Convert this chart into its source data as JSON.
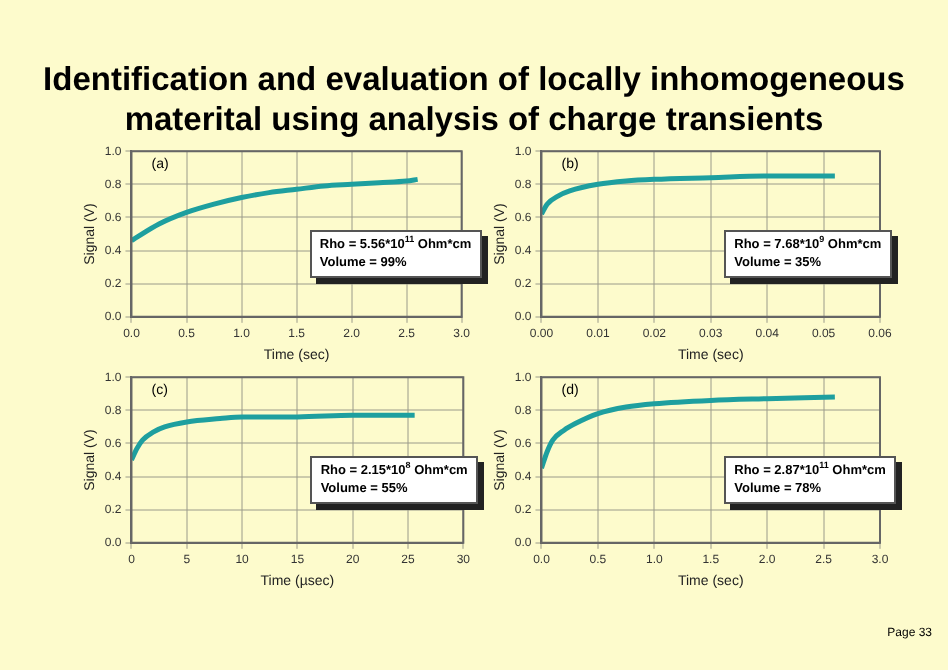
{
  "chart_data": [
    {
      "type": "line",
      "title": "Identification and evaluation of locally inhomogeneous materital using analysis of charge transients",
      "xlabel": "Time (sec)",
      "ylabel": "Signal (V)",
      "annotations": [
        "(a)",
        "Rho = 5.56*10$^{11}$ Ohm*cm",
        "Volume = 99%"
      ],
      "xlim": [
        0,
        3
      ],
      "xticks": [
        {
          "value": 0,
          "label": "0.0"
        },
        {
          "value": 0.5,
          "label": "0.5"
        },
        {
          "value": 1,
          "label": "1.0"
        },
        {
          "value": 1.5,
          "label": "1.5"
        },
        {
          "value": 2,
          "label": "2.0"
        },
        {
          "value": 2.5,
          "label": "2.5"
        },
        {
          "value": 3,
          "label": "3.0"
        }
      ],
      "ylim": [
        0,
        1
      ],
      "yticks": [
        {
          "value": 0,
          "label": "0.0"
        },
        {
          "value": 0.2,
          "label": "0.2"
        },
        {
          "value": 0.4,
          "label": "0.4"
        },
        {
          "value": 0.6,
          "label": "0.6"
        },
        {
          "value": 0.8,
          "label": "0.8"
        },
        {
          "value": 1,
          "label": "1.0"
        }
      ],
      "grid": true,
      "marker": "none",
      "series": [
        {
          "color": "#1e9f9f",
          "x": [
            0,
            0.25,
            0.5,
            0.75,
            1.0,
            1.25,
            1.5,
            1.75,
            2.0,
            2.25,
            2.5,
            2.6
          ],
          "values": [
            0.46,
            0.56,
            0.63,
            0.68,
            0.72,
            0.75,
            0.77,
            0.79,
            0.8,
            0.81,
            0.82,
            0.83
          ]
        }
      ]
    },
    {
      "type": "line",
      "xlabel": "Time (sec)",
      "ylabel": "Signal (V)",
      "annotations": [
        "(b)",
        "Rho = 7.68*10$^{9}$ Ohm*cm",
        "Volume = 35%"
      ],
      "xlim": [
        0,
        0.06
      ],
      "xticks": [
        {
          "value": 0,
          "label": "0.00"
        },
        {
          "value": 0.01,
          "label": "0.01"
        },
        {
          "value": 0.02,
          "label": "0.02"
        },
        {
          "value": 0.03,
          "label": "0.03"
        },
        {
          "value": 0.04,
          "label": "0.04"
        },
        {
          "value": 0.05,
          "label": "0.05"
        },
        {
          "value": 0.06,
          "label": "0.06"
        }
      ],
      "ylim": [
        0,
        1
      ],
      "yticks": [
        {
          "value": 0,
          "label": "0.0"
        },
        {
          "value": 0.2,
          "label": "0.2"
        },
        {
          "value": 0.4,
          "label": "0.4"
        },
        {
          "value": 0.6,
          "label": "0.6"
        },
        {
          "value": 0.8,
          "label": "0.8"
        },
        {
          "value": 1,
          "label": "1.0"
        }
      ],
      "grid": true,
      "marker": "none",
      "series": [
        {
          "color": "#1e9f9f",
          "x": [
            0,
            0.001,
            0.003,
            0.005,
            0.01,
            0.015,
            0.02,
            0.03,
            0.04,
            0.052
          ],
          "values": [
            0.62,
            0.68,
            0.73,
            0.76,
            0.8,
            0.82,
            0.83,
            0.84,
            0.85,
            0.85
          ]
        }
      ]
    },
    {
      "type": "line",
      "xlabel": "Time (µsec)",
      "ylabel": "Signal (V)",
      "annotations": [
        "(c)",
        "Rho = 2.15*10$^{8}$ Ohm*cm",
        "Volume = 55%"
      ],
      "xlim": [
        0,
        30
      ],
      "xticks": [
        0,
        5,
        10,
        15,
        20,
        25,
        30
      ],
      "ylim": [
        0,
        1
      ],
      "yticks": [
        {
          "value": 0,
          "label": "0.0"
        },
        {
          "value": 0.2,
          "label": "0.2"
        },
        {
          "value": 0.4,
          "label": "0.4"
        },
        {
          "value": 0.6,
          "label": "0.6"
        },
        {
          "value": 0.8,
          "label": "0.8"
        },
        {
          "value": 1,
          "label": "1.0"
        }
      ],
      "grid": true,
      "marker": "none",
      "series": [
        {
          "color": "#1e9f9f",
          "x": [
            0,
            0.5,
            1,
            2,
            3,
            5,
            8,
            10,
            15,
            20,
            25.6
          ],
          "values": [
            0.5,
            0.57,
            0.62,
            0.67,
            0.7,
            0.73,
            0.75,
            0.76,
            0.76,
            0.77,
            0.77
          ]
        }
      ]
    },
    {
      "type": "line",
      "xlabel": "Time (sec)",
      "ylabel": "Signal (V)",
      "annotations": [
        "(d)",
        "Rho = 2.87*10$^{11}$ Ohm*cm",
        "Volume = 78%",
        "Page 33"
      ],
      "xlim": [
        0,
        3
      ],
      "xticks": [
        {
          "value": 0,
          "label": "0.0"
        },
        {
          "value": 0.5,
          "label": "0.5"
        },
        {
          "value": 1,
          "label": "1.0"
        },
        {
          "value": 1.5,
          "label": "1.5"
        },
        {
          "value": 2,
          "label": "2.0"
        },
        {
          "value": 2.5,
          "label": "2.5"
        },
        {
          "value": 3,
          "label": "3.0"
        }
      ],
      "ylim": [
        0,
        1
      ],
      "yticks": [
        {
          "value": 0,
          "label": "0.0"
        },
        {
          "value": 0.2,
          "label": "0.2"
        },
        {
          "value": 0.4,
          "label": "0.4"
        },
        {
          "value": 0.6,
          "label": "0.6"
        },
        {
          "value": 0.8,
          "label": "0.8"
        },
        {
          "value": 1,
          "label": "1.0"
        }
      ],
      "grid": true,
      "marker": "none",
      "series": [
        {
          "color": "#1e9f9f",
          "x": [
            0,
            0.05,
            0.1,
            0.2,
            0.3,
            0.5,
            0.75,
            1.0,
            1.5,
            2.0,
            2.6
          ],
          "values": [
            0.45,
            0.55,
            0.62,
            0.68,
            0.72,
            0.78,
            0.82,
            0.84,
            0.86,
            0.87,
            0.88
          ]
        }
      ]
    }
  ]
}
